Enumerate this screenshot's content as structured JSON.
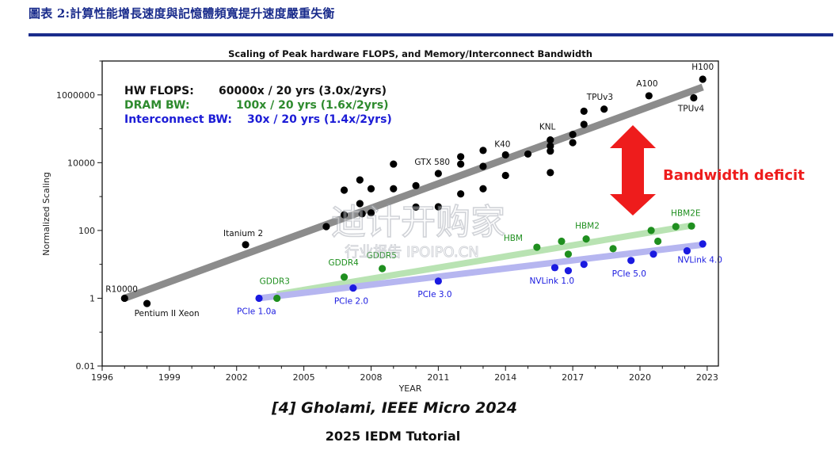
{
  "page": {
    "title": "圖表 2:計算性能增長速度與記憶體頻寬提升速度嚴重失衡"
  },
  "chart_data": {
    "type": "scatter",
    "title": "Scaling of Peak hardware FLOPS, and Memory/Interconnect Bandwidth",
    "xlabel": "YEAR",
    "ylabel": "Normalized Scaling",
    "y_scale": "log",
    "xlim": [
      1996,
      2023.5
    ],
    "ylim": [
      0.01,
      10000000
    ],
    "x_ticks": [
      1996,
      1999,
      2002,
      2005,
      2008,
      2011,
      2014,
      2017,
      2020,
      2023
    ],
    "y_ticks": [
      {
        "value": 0.01,
        "label": "0.01"
      },
      {
        "value": 1,
        "label": "1"
      },
      {
        "value": 100,
        "label": "100"
      },
      {
        "value": 10000,
        "label": "10000"
      },
      {
        "value": 1000000,
        "label": "1000000"
      }
    ],
    "grid": false,
    "legend_text": [
      {
        "name": "HW FLOPS:",
        "rate": "60000x / 20 yrs (3.0x/2yrs)",
        "color": "#111111"
      },
      {
        "name": "DRAM BW:",
        "rate": "100x / 20 yrs (1.6x/2yrs)",
        "color": "#2e8b2e"
      },
      {
        "name": "Interconnect BW:",
        "rate": "30x / 20 yrs (1.4x/2yrs)",
        "color": "#1c1cd6"
      }
    ],
    "annotation": {
      "text": "Bandwidth deficit",
      "color": "#ee1c1c"
    },
    "series": [
      {
        "name": "HW FLOPS",
        "color": "#000000",
        "trend_color": "#8c8c8c",
        "trend": [
          [
            1997,
            1
          ],
          [
            2022.8,
            1700000
          ]
        ],
        "points": [
          {
            "x": 1997,
            "y": 1,
            "label": "R10000"
          },
          {
            "x": 1998,
            "y": 0.7,
            "label": "Pentium II Xeon"
          },
          {
            "x": 2002.4,
            "y": 38,
            "label": "Itanium 2"
          },
          {
            "x": 2006,
            "y": 130
          },
          {
            "x": 2006.8,
            "y": 290
          },
          {
            "x": 2006.8,
            "y": 1550
          },
          {
            "x": 2007.5,
            "y": 620
          },
          {
            "x": 2007.5,
            "y": 3100
          },
          {
            "x": 2007.6,
            "y": 310
          },
          {
            "x": 2008,
            "y": 1700
          },
          {
            "x": 2008,
            "y": 330
          },
          {
            "x": 2009,
            "y": 9100
          },
          {
            "x": 2009,
            "y": 1700
          },
          {
            "x": 2010,
            "y": 2100
          },
          {
            "x": 2010,
            "y": 490
          },
          {
            "x": 2011,
            "y": 4800,
            "label": "GTX 580"
          },
          {
            "x": 2011,
            "y": 500
          },
          {
            "x": 2012,
            "y": 15000
          },
          {
            "x": 2012,
            "y": 9100
          },
          {
            "x": 2012,
            "y": 1200
          },
          {
            "x": 2013,
            "y": 23000
          },
          {
            "x": 2013,
            "y": 7800
          },
          {
            "x": 2013,
            "y": 1700
          },
          {
            "x": 2014,
            "y": 17000,
            "label": "K40"
          },
          {
            "x": 2014,
            "y": 4200
          },
          {
            "x": 2015,
            "y": 18000
          },
          {
            "x": 2016,
            "y": 47000,
            "label": "KNL"
          },
          {
            "x": 2016,
            "y": 31000
          },
          {
            "x": 2016,
            "y": 22000
          },
          {
            "x": 2016,
            "y": 5100
          },
          {
            "x": 2017,
            "y": 68000
          },
          {
            "x": 2017,
            "y": 39000
          },
          {
            "x": 2017.5,
            "y": 135000
          },
          {
            "x": 2017.5,
            "y": 330000
          },
          {
            "x": 2018.4,
            "y": 380000,
            "label": "TPUv3"
          },
          {
            "x": 2020.4,
            "y": 940000,
            "label": "A100"
          },
          {
            "x": 2022.4,
            "y": 820000,
            "label": "TPUv4"
          },
          {
            "x": 2022.8,
            "y": 2900000,
            "label": "H100"
          }
        ]
      },
      {
        "name": "DRAM BW",
        "color": "#1f8f1f",
        "trend_color": "#b9e3b3",
        "trend": [
          [
            2003.8,
            1.3
          ],
          [
            2022.3,
            140
          ]
        ],
        "points": [
          {
            "x": 2003.8,
            "y": 1,
            "label": "GDDR3"
          },
          {
            "x": 2006.8,
            "y": 4.2,
            "label": "GDDR4"
          },
          {
            "x": 2008.5,
            "y": 7.5,
            "label": "GDDR5"
          },
          {
            "x": 2015.4,
            "y": 32,
            "label": "HBM"
          },
          {
            "x": 2016.5,
            "y": 48
          },
          {
            "x": 2016.8,
            "y": 20
          },
          {
            "x": 2017.6,
            "y": 56,
            "label": "HBM2"
          },
          {
            "x": 2018.8,
            "y": 29
          },
          {
            "x": 2020.5,
            "y": 100
          },
          {
            "x": 2020.8,
            "y": 48
          },
          {
            "x": 2021.6,
            "y": 130
          },
          {
            "x": 2022.3,
            "y": 135,
            "label": "HBM2E"
          }
        ]
      },
      {
        "name": "Interconnect BW",
        "color": "#1a1ae0",
        "trend_color": "#b6b6f0",
        "trend": [
          [
            2003,
            1
          ],
          [
            2022.8,
            38
          ]
        ],
        "points": [
          {
            "x": 2003,
            "y": 1,
            "label": "PCIe 1.0a"
          },
          {
            "x": 2007.2,
            "y": 2,
            "label": "PCIe 2.0"
          },
          {
            "x": 2011,
            "y": 3.2,
            "label": "PCIe 3.0"
          },
          {
            "x": 2016.2,
            "y": 8,
            "label": "NVLink 1.0"
          },
          {
            "x": 2016.8,
            "y": 6.5
          },
          {
            "x": 2017.5,
            "y": 10
          },
          {
            "x": 2019.6,
            "y": 13,
            "label": "PCIe 5.0"
          },
          {
            "x": 2020.6,
            "y": 20
          },
          {
            "x": 2022.1,
            "y": 25,
            "label": "NVLink 4.0"
          },
          {
            "x": 2022.8,
            "y": 40
          }
        ]
      }
    ]
  },
  "footer": {
    "citation": "[4] Gholami, IEEE Micro 2024",
    "event": "2025 IEDM Tutorial"
  },
  "watermark": {
    "main": "迪计开购家",
    "sub": "行业报告 IPOIPO.CN"
  }
}
